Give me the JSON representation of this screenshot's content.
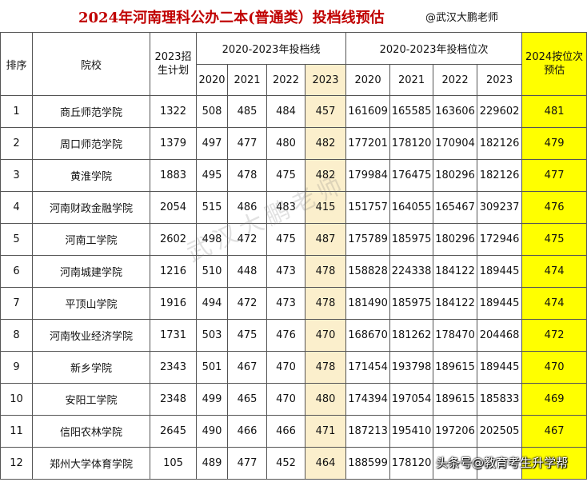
{
  "title": "2024年河南理科公办二本(普通类）投档线预估",
  "tag": "@武汉大鹏老师",
  "headers": {
    "rank": "排序",
    "school": "院校",
    "plan": "2023招生计划",
    "lines_group": "2020-2023年投档线",
    "ranks_group": "2020-2023年投档位次",
    "estimate": "2024按位次预估",
    "years": [
      "2020",
      "2021",
      "2022",
      "2023"
    ]
  },
  "rows": [
    {
      "no": "1",
      "school": "商丘师范学院",
      "plan": "1322",
      "lines": [
        "508",
        "485",
        "484",
        "457"
      ],
      "ranks": [
        "161609",
        "165585",
        "163606",
        "229602"
      ],
      "est": "481"
    },
    {
      "no": "2",
      "school": "周口师范学院",
      "plan": "1379",
      "lines": [
        "497",
        "477",
        "480",
        "482"
      ],
      "ranks": [
        "177201",
        "178120",
        "170904",
        "182126"
      ],
      "est": "479"
    },
    {
      "no": "3",
      "school": "黄淮学院",
      "plan": "1883",
      "lines": [
        "495",
        "478",
        "475",
        "482"
      ],
      "ranks": [
        "179984",
        "176475",
        "180296",
        "182126"
      ],
      "est": "477"
    },
    {
      "no": "4",
      "school": "河南财政金融学院",
      "plan": "2054",
      "lines": [
        "515",
        "486",
        "483",
        "415"
      ],
      "ranks": [
        "151757",
        "164055",
        "165467",
        "309237"
      ],
      "est": "476"
    },
    {
      "no": "5",
      "school": "河南工学院",
      "plan": "2602",
      "lines": [
        "498",
        "472",
        "475",
        "487"
      ],
      "ranks": [
        "175789",
        "185975",
        "180296",
        "172946"
      ],
      "est": "475"
    },
    {
      "no": "6",
      "school": "河南城建学院",
      "plan": "1216",
      "lines": [
        "510",
        "448",
        "473",
        "478"
      ],
      "ranks": [
        "158828",
        "224338",
        "184122",
        "189445"
      ],
      "est": "474"
    },
    {
      "no": "7",
      "school": "平顶山学院",
      "plan": "1916",
      "lines": [
        "494",
        "472",
        "473",
        "478"
      ],
      "ranks": [
        "181490",
        "185975",
        "184122",
        "189445"
      ],
      "est": "474"
    },
    {
      "no": "8",
      "school": "河南牧业经济学院",
      "plan": "1731",
      "lines": [
        "503",
        "475",
        "476",
        "470"
      ],
      "ranks": [
        "168670",
        "181262",
        "178470",
        "204468"
      ],
      "est": "472"
    },
    {
      "no": "9",
      "school": "新乡学院",
      "plan": "2343",
      "lines": [
        "501",
        "467",
        "470",
        "478"
      ],
      "ranks": [
        "171454",
        "193798",
        "189615",
        "189445"
      ],
      "est": "470"
    },
    {
      "no": "10",
      "school": "安阳工学院",
      "plan": "2348",
      "lines": [
        "499",
        "465",
        "470",
        "480"
      ],
      "ranks": [
        "174394",
        "197054",
        "189615",
        "185833"
      ],
      "est": "469"
    },
    {
      "no": "11",
      "school": "信阳农林学院",
      "plan": "2645",
      "lines": [
        "490",
        "466",
        "466",
        "471"
      ],
      "ranks": [
        "187213",
        "195410",
        "197206",
        "202505"
      ],
      "est": "467"
    },
    {
      "no": "12",
      "school": "郑州大学体育学院",
      "plan": "105",
      "lines": [
        "489",
        "477",
        "452",
        "464"
      ],
      "ranks": [
        "188599",
        "178120",
        "",
        ""
      ],
      "est": ""
    }
  ],
  "watermark": "武汉大鹏老师",
  "footer_watermark": "头条号@教育考生升学帮",
  "colors": {
    "title": "#c00000",
    "highlight_2023": "#fbefcc",
    "highlight_estimate": "#ffff00"
  }
}
